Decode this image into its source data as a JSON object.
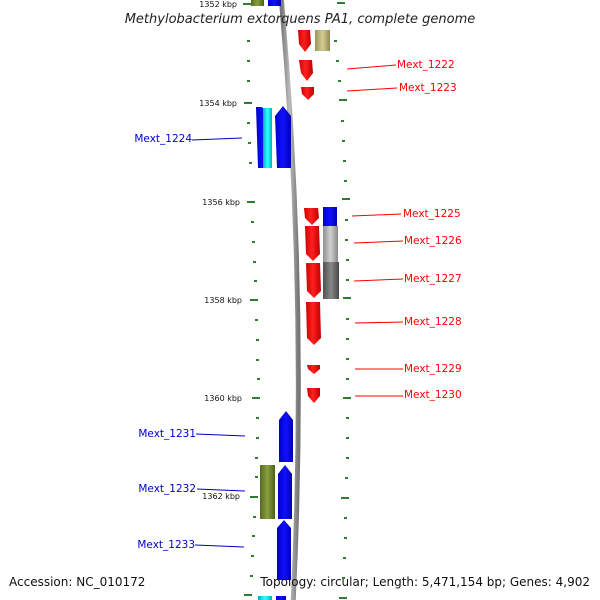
{
  "title": "Methylobacterium extorquens PA1, complete genome",
  "footer": {
    "accession": "Accession: NC_010172",
    "summary": "Topology: circular; Length: 5,471,154 bp; Genes: 4,902"
  },
  "ticks": [
    "1352 kbp",
    "1354 kbp",
    "1356 kbp",
    "1358 kbp",
    "1360 kbp",
    "1362 kbp"
  ],
  "genes": [
    {
      "name": "Mext_1222",
      "color": "#ff0000"
    },
    {
      "name": "Mext_1223",
      "color": "#ff0000"
    },
    {
      "name": "Mext_1224",
      "color": "#0000cc"
    },
    {
      "name": "Mext_1225",
      "color": "#ff0000"
    },
    {
      "name": "Mext_1226",
      "color": "#ff0000"
    },
    {
      "name": "Mext_1227",
      "color": "#ff0000"
    },
    {
      "name": "Mext_1228",
      "color": "#ff0000"
    },
    {
      "name": "Mext_1229",
      "color": "#ff0000"
    },
    {
      "name": "Mext_1230",
      "color": "#ff0000"
    },
    {
      "name": "Mext_1231",
      "color": "#0000cc"
    },
    {
      "name": "Mext_1232",
      "color": "#0000cc"
    },
    {
      "name": "Mext_1233",
      "color": "#0000cc"
    }
  ],
  "colors": {
    "forward_cds": "#ff0000",
    "reverse_cds": "#0000ff",
    "cyan_feature": "#00e0e0",
    "olive_feature": "#6b8e23",
    "khaki_feature": "#b8b070",
    "grey_feature": "#a0a0a0",
    "dark_grey_feature": "#606060",
    "backbone": "#999999",
    "tick_mark": "#2e7d32"
  }
}
